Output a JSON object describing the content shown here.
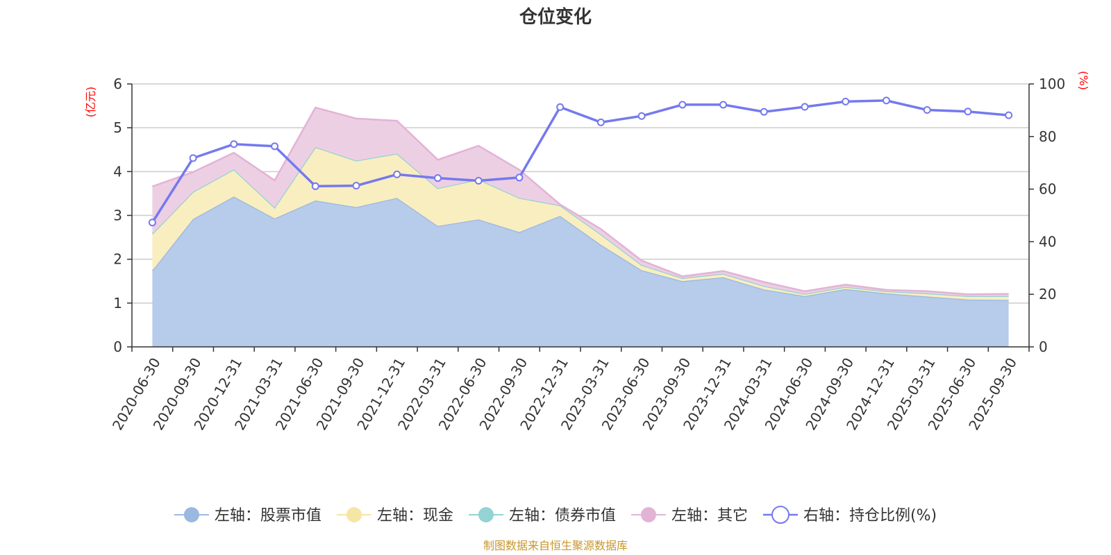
{
  "chart_data": {
    "type": "area",
    "title": "仓位变化",
    "source_note": "制图数据来自恒生聚源数据库",
    "left_axis": {
      "unit_label": "(亿元)",
      "ylim": [
        0,
        6
      ],
      "ticks": [
        "0",
        "1",
        "2",
        "3",
        "4",
        "5",
        "6"
      ]
    },
    "right_axis": {
      "unit_label": "(%)",
      "ylim": [
        0,
        100
      ],
      "ticks": [
        "0",
        "20",
        "40",
        "60",
        "80",
        "100"
      ]
    },
    "categories": [
      "2020-06-30",
      "2020-09-30",
      "2020-12-31",
      "2021-03-31",
      "2021-06-30",
      "2021-09-30",
      "2021-12-31",
      "2022-03-31",
      "2022-06-30",
      "2022-09-30",
      "2022-12-31",
      "2023-03-31",
      "2023-06-30",
      "2023-09-30",
      "2023-12-31",
      "2024-03-31",
      "2024-06-30",
      "2024-09-30",
      "2024-12-31",
      "2025-03-31",
      "2025-06-30",
      "2025-09-30"
    ],
    "series": [
      {
        "name": "左轴：股票市值",
        "axis": "left",
        "color": "#9ab8e0",
        "fill": "#b7cbea",
        "values": [
          1.74,
          2.92,
          3.43,
          2.93,
          3.34,
          3.19,
          3.4,
          2.76,
          2.91,
          2.62,
          2.99,
          2.33,
          1.75,
          1.5,
          1.59,
          1.31,
          1.16,
          1.32,
          1.22,
          1.15,
          1.08,
          1.07
        ]
      },
      {
        "name": "左轴：现金",
        "axis": "left",
        "color": "#f6e6a6",
        "fill": "#f9eec0",
        "values": [
          0.84,
          0.62,
          0.62,
          0.25,
          1.22,
          1.06,
          1.01,
          0.86,
          0.91,
          0.78,
          0.24,
          0.24,
          0.12,
          0.07,
          0.08,
          0.08,
          0.05,
          0.05,
          0.05,
          0.07,
          0.08,
          0.09
        ]
      },
      {
        "name": "左轴：债券市值",
        "axis": "left",
        "color": "#93d3d3",
        "fill": "#b3e2e2",
        "values": [
          0,
          0,
          0,
          0,
          0,
          0,
          0,
          0,
          0,
          0,
          0,
          0,
          0,
          0,
          0,
          0,
          0,
          0,
          0,
          0,
          0,
          0
        ]
      },
      {
        "name": "左轴：其它",
        "axis": "left",
        "color": "#e2b3d6",
        "fill": "#edcfe4",
        "values": [
          1.08,
          0.45,
          0.38,
          0.62,
          0.9,
          0.96,
          0.75,
          0.65,
          0.77,
          0.64,
          0.02,
          0.12,
          0.1,
          0.04,
          0.06,
          0.09,
          0.06,
          0.05,
          0.03,
          0.05,
          0.04,
          0.05
        ]
      },
      {
        "name": "右轴：持仓比例(%)",
        "axis": "right",
        "color": "#7479ee",
        "fill": "#ffffff",
        "values": [
          47.3,
          71.8,
          77.1,
          76.3,
          61.1,
          61.3,
          65.6,
          64.2,
          63.2,
          64.4,
          91.2,
          85.4,
          87.8,
          92.1,
          92.1,
          89.4,
          91.3,
          93.3,
          93.7,
          90.1,
          89.5,
          88.1
        ]
      }
    ]
  }
}
